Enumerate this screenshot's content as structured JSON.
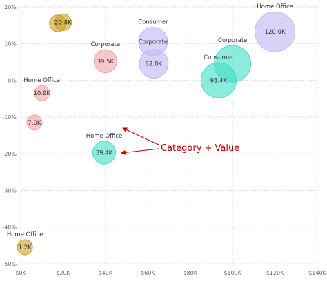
{
  "chart_data": {
    "type": "scatter",
    "title": "",
    "xlabel": "",
    "ylabel": "",
    "xlim": [
      0,
      140000
    ],
    "ylim": [
      -0.5,
      0.2
    ],
    "x_ticks": [
      {
        "value": 0,
        "label": "$0K"
      },
      {
        "value": 20000,
        "label": "$20K"
      },
      {
        "value": 40000,
        "label": "$40K"
      },
      {
        "value": 60000,
        "label": "$60K"
      },
      {
        "value": 80000,
        "label": "$80K"
      },
      {
        "value": 100000,
        "label": "$100K"
      },
      {
        "value": 120000,
        "label": "$120K"
      },
      {
        "value": 140000,
        "label": "$140K"
      }
    ],
    "y_ticks": [
      {
        "value": 0.2,
        "label": "20%"
      },
      {
        "value": 0.1,
        "label": "10%"
      },
      {
        "value": 0.0,
        "label": "0%"
      },
      {
        "value": -0.1,
        "label": "-10%"
      },
      {
        "value": -0.2,
        "label": "-20%"
      },
      {
        "value": -0.3,
        "label": "-30%"
      },
      {
        "value": -0.4,
        "label": "-40%"
      },
      {
        "value": -0.5,
        "label": "-50%"
      }
    ],
    "grid": true,
    "colors": {
      "gold": "#c9a227",
      "pink": "#f4a3a3",
      "lavender": "#c3b4f5",
      "teal": "#40dfc3",
      "axis_text": "#666666",
      "grid": "#d9d9d9",
      "annotation": "#c00000"
    },
    "points": [
      {
        "x": 17500,
        "y": 0.155,
        "size": 20800,
        "color": "gold",
        "category": "",
        "value_label": ""
      },
      {
        "x": 20000,
        "y": 0.158,
        "size": 20800,
        "color": "gold",
        "category": "",
        "value_label": "20.8K"
      },
      {
        "x": 2000,
        "y": -0.455,
        "size": 1200,
        "color": "gold",
        "category": "Home Office",
        "value_label": "1.2K"
      },
      {
        "x": 40000,
        "y": 0.052,
        "size": 39500,
        "color": "pink",
        "category": "Corporate",
        "value_label": "39.5K"
      },
      {
        "x": 10000,
        "y": -0.035,
        "size": 10900,
        "color": "pink",
        "category": "Home Office",
        "value_label": "10.9K"
      },
      {
        "x": 6500,
        "y": -0.115,
        "size": 7000,
        "color": "pink",
        "category": "",
        "value_label": "7.0K"
      },
      {
        "x": 62500,
        "y": 0.105,
        "size": 62800,
        "color": "lavender",
        "category": "Consumer",
        "value_label": "Corporate"
      },
      {
        "x": 62800,
        "y": 0.045,
        "size": 62800,
        "color": "lavender",
        "category": "",
        "value_label": "62.8K"
      },
      {
        "x": 120000,
        "y": 0.132,
        "size": 120000,
        "color": "lavender",
        "category": "Home Office",
        "value_label": "120.0K"
      },
      {
        "x": 100000,
        "y": 0.045,
        "size": 100000,
        "color": "teal",
        "category": "Corporate",
        "value_label": ""
      },
      {
        "x": 93400,
        "y": 0.0,
        "size": 93400,
        "color": "teal",
        "category": "Consumer",
        "value_label": "93.4K"
      },
      {
        "x": 39400,
        "y": -0.197,
        "size": 39400,
        "color": "teal",
        "category": "Home Office",
        "value_label": "39.4K"
      }
    ],
    "annotation": {
      "text": "Category + Value",
      "arrows_to": [
        "category label of 39.4K point",
        "value label of 39.4K point"
      ]
    }
  }
}
